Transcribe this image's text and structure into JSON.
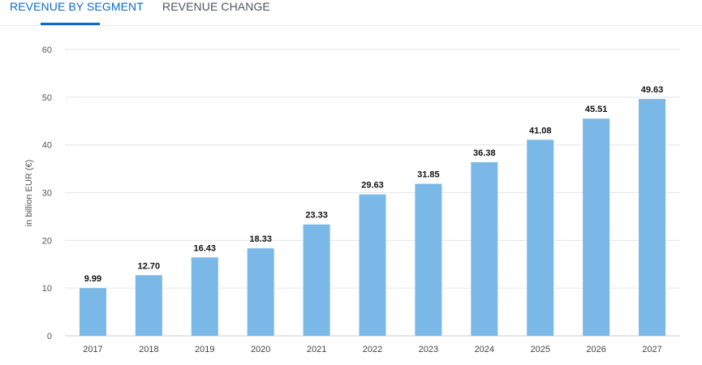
{
  "tabs": {
    "active_label": "REVENUE BY SEGMENT",
    "inactive_label": "REVENUE CHANGE"
  },
  "colors": {
    "accent": "#0d6ac8",
    "bar": "#7ab8e8",
    "grid": "#e3e6ea"
  },
  "chart_data": {
    "type": "bar",
    "categories": [
      "2017",
      "2018",
      "2019",
      "2020",
      "2021",
      "2022",
      "2023",
      "2024",
      "2025",
      "2026",
      "2027"
    ],
    "values": [
      9.99,
      12.7,
      16.43,
      18.33,
      23.33,
      29.63,
      31.85,
      36.38,
      41.08,
      45.51,
      49.63
    ],
    "value_labels": [
      "9.99",
      "12.70",
      "16.43",
      "18.33",
      "23.33",
      "29.63",
      "31.85",
      "36.38",
      "41.08",
      "45.51",
      "49.63"
    ],
    "ylabel": "in billion EUR (€)",
    "ylim": [
      0,
      60
    ],
    "yticks": [
      0,
      10,
      20,
      30,
      40,
      50,
      60
    ],
    "grid": true
  }
}
